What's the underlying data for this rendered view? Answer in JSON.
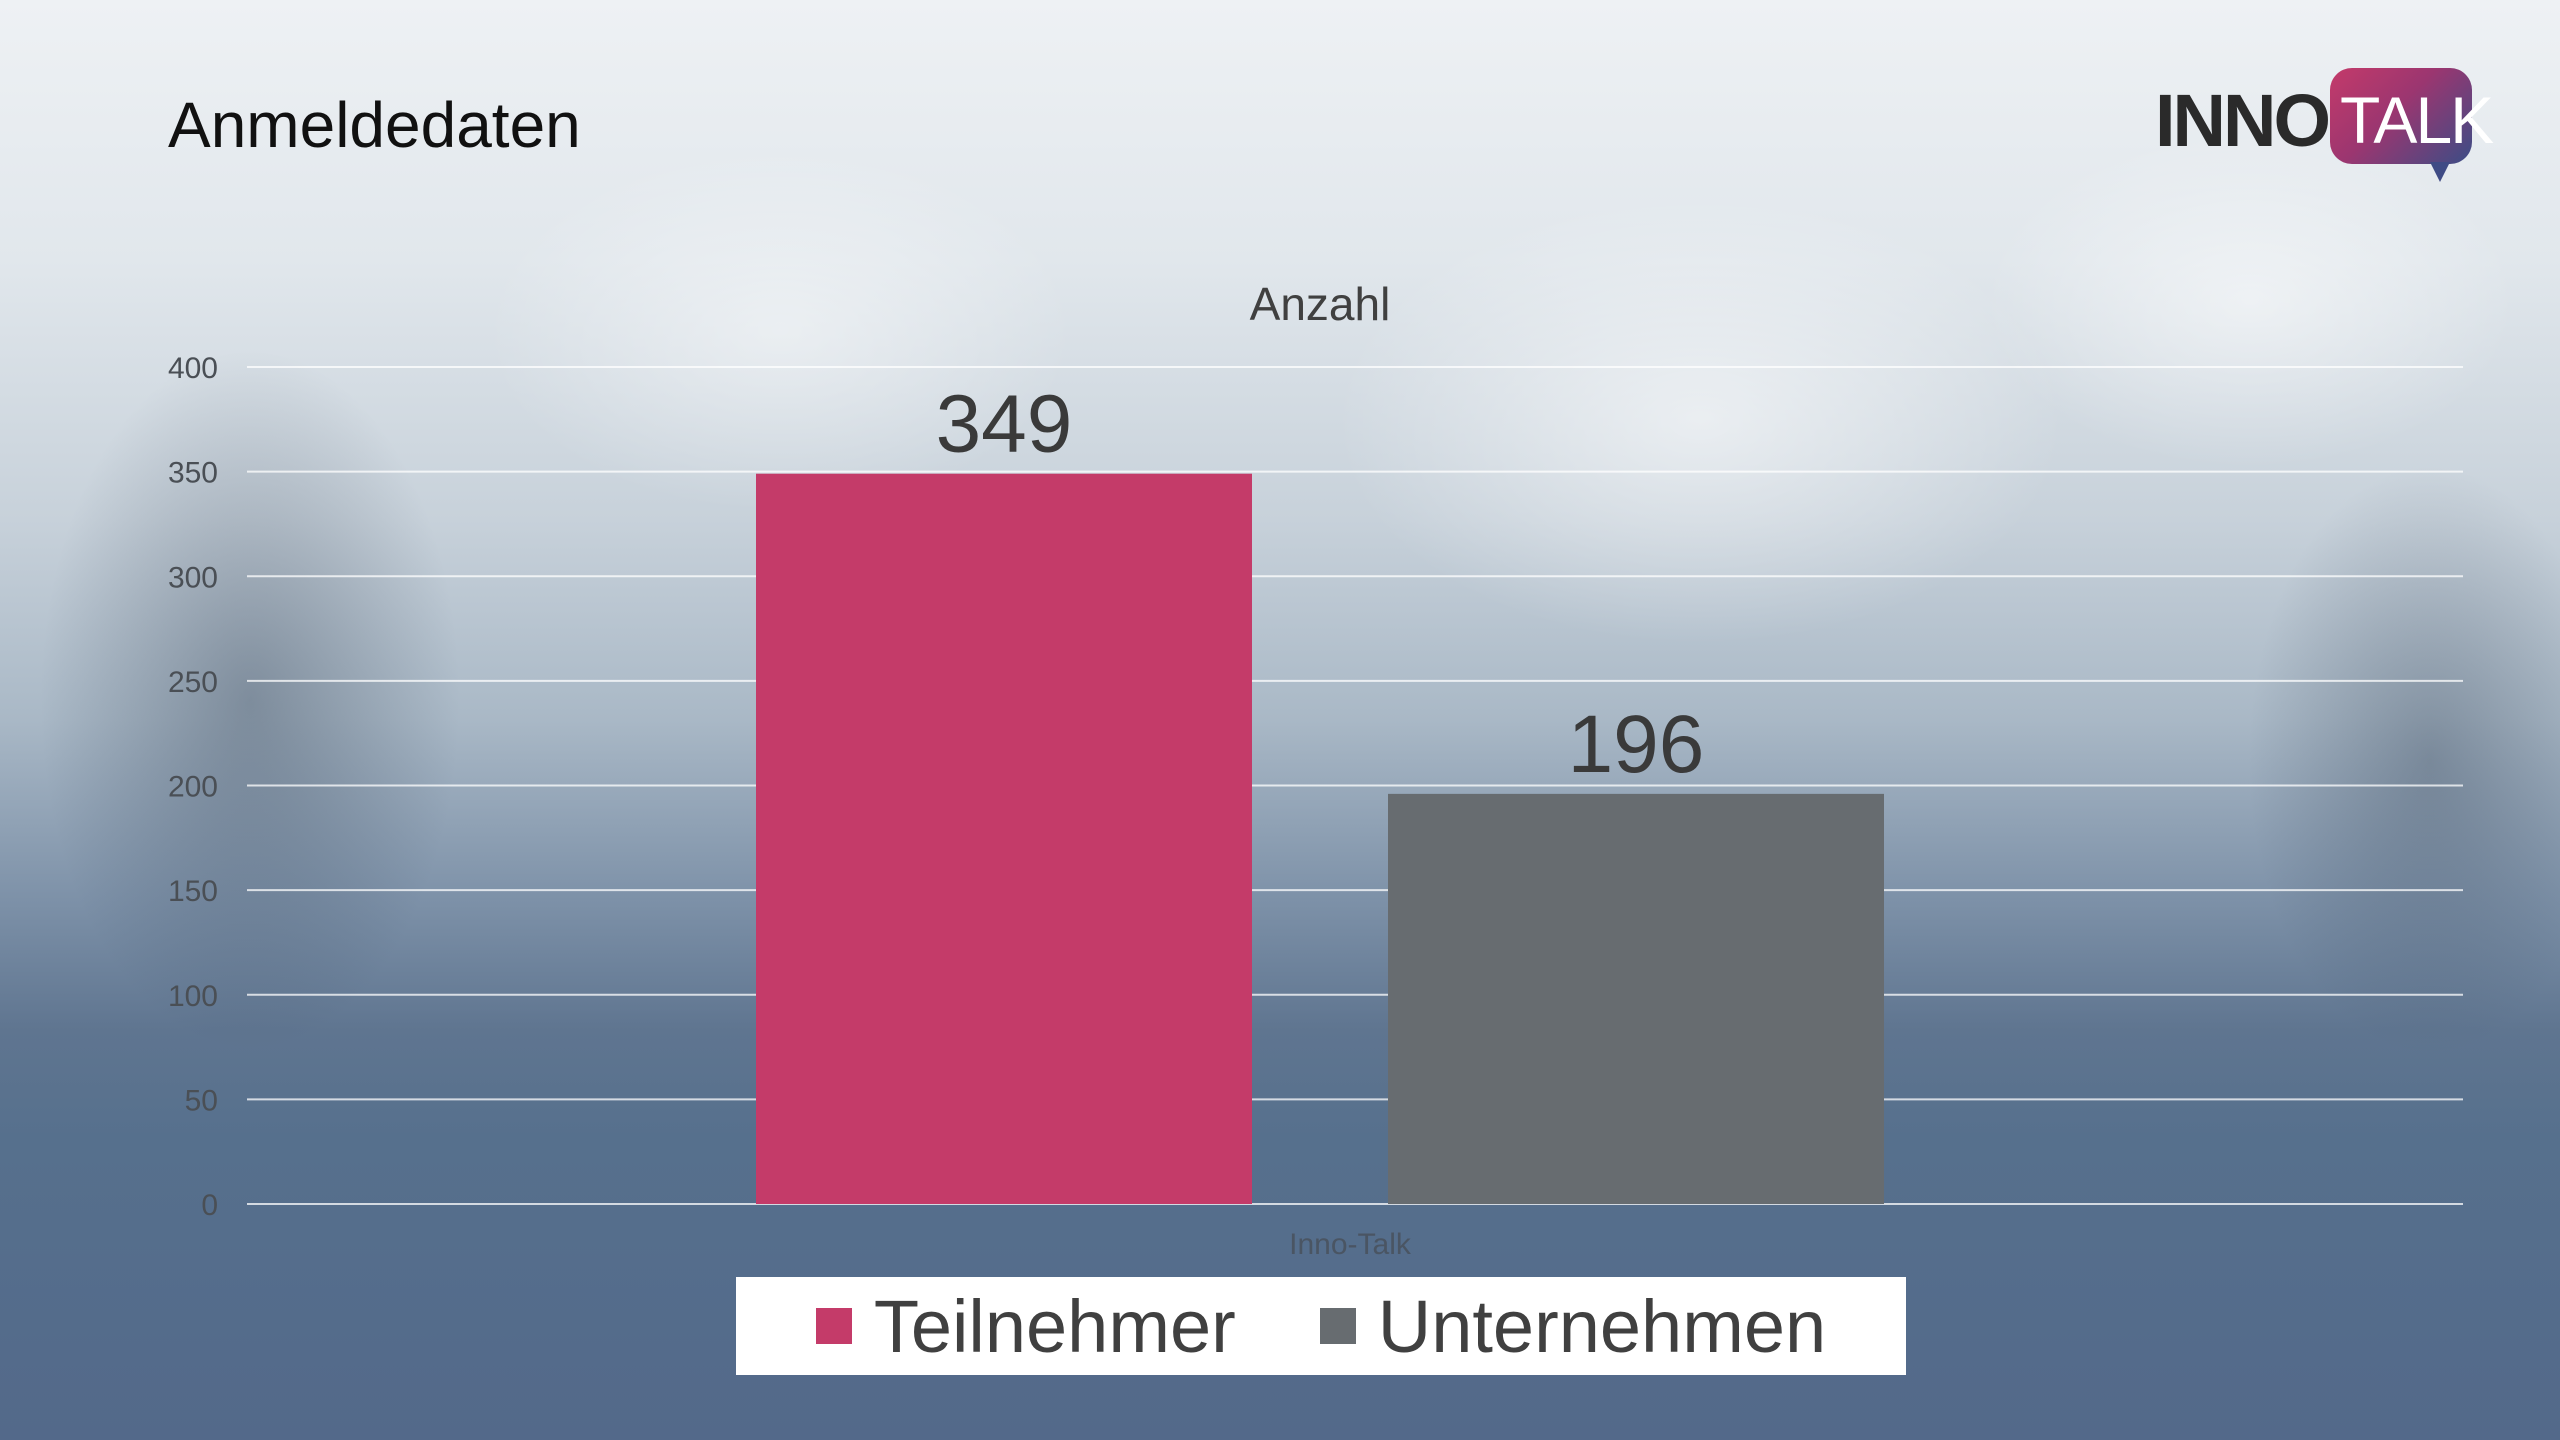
{
  "page": {
    "title": "Anmeldedaten"
  },
  "logo": {
    "part1": "INNO",
    "part2": "TALK"
  },
  "chart_data": {
    "type": "bar",
    "title": "Anzahl",
    "xlabel": "",
    "ylabel": "",
    "categories": [
      "Inno-Talk"
    ],
    "series": [
      {
        "name": "Teilnehmer",
        "values": [
          349
        ],
        "color": "#c43b69"
      },
      {
        "name": "Unternehmen",
        "values": [
          196
        ],
        "color": "#676c70"
      }
    ],
    "ylim": [
      0,
      400
    ],
    "yticks": [
      0,
      50,
      100,
      150,
      200,
      250,
      300,
      350,
      400
    ],
    "grid": true,
    "data_labels": true,
    "legend_position": "bottom"
  }
}
